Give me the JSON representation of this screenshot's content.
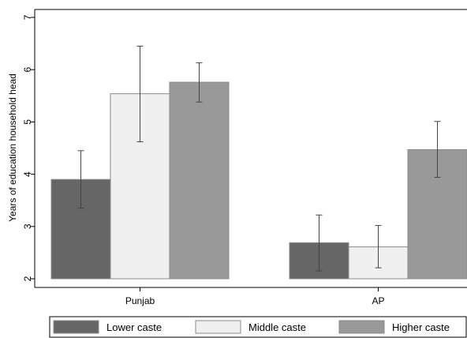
{
  "chart_data": {
    "type": "bar",
    "ylabel": "Years of education household head",
    "ylim": [
      2,
      7
    ],
    "yticks": [
      "2",
      "3",
      "4",
      "5",
      "6",
      "7"
    ],
    "categories": [
      "Punjab",
      "AP"
    ],
    "series": [
      {
        "name": "Lower caste",
        "color": "#666666",
        "values": [
          3.9,
          2.69
        ],
        "ci_low": [
          3.35,
          2.15
        ],
        "ci_high": [
          4.45,
          3.22
        ]
      },
      {
        "name": "Middle caste",
        "color": "#f0f0f0",
        "values": [
          5.54,
          2.61
        ],
        "ci_low": [
          4.62,
          2.21
        ],
        "ci_high": [
          6.45,
          3.02
        ]
      },
      {
        "name": "Higher caste",
        "color": "#999999",
        "values": [
          5.76,
          4.47
        ],
        "ci_low": [
          5.38,
          3.94
        ],
        "ci_high": [
          6.13,
          5.01
        ]
      }
    ],
    "grid": false,
    "legend_position": "bottom"
  }
}
